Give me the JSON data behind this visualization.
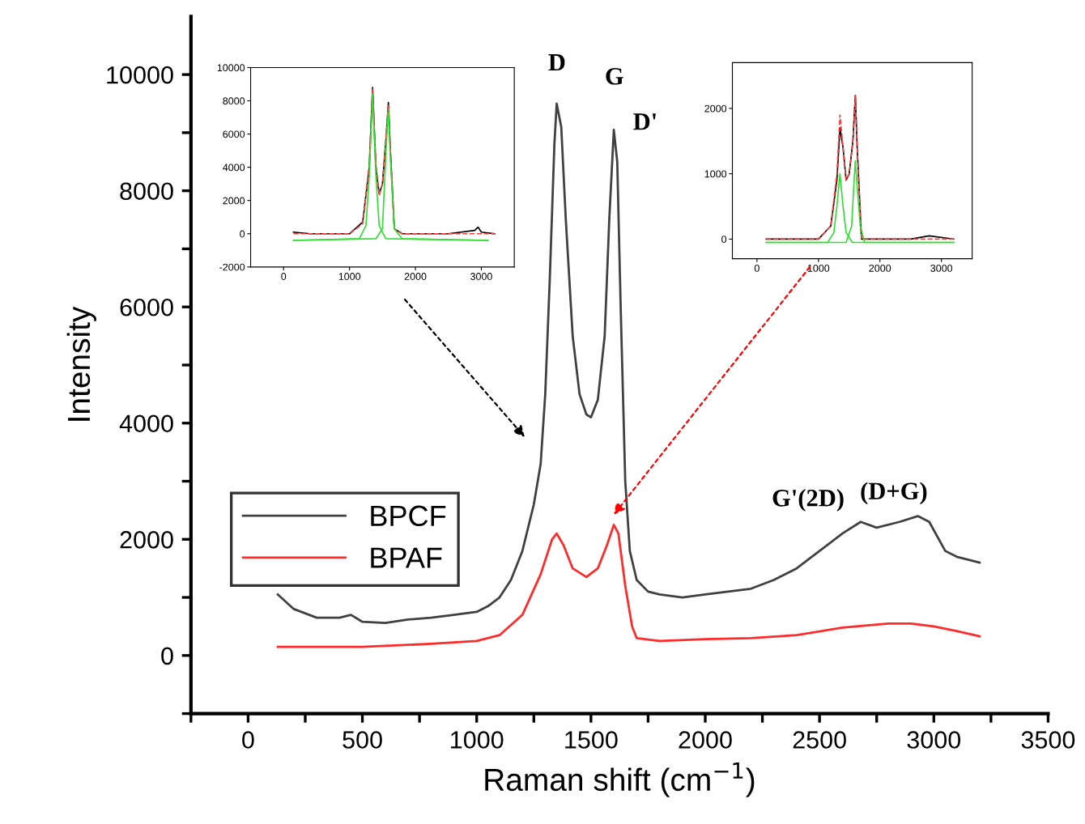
{
  "chart_data": [
    {
      "type": "line",
      "xlabel": "Raman shift (cm$^{−1}$)",
      "ylabel": "Intensity",
      "xlim": [
        -250,
        3500
      ],
      "ylim": [
        -1000,
        11000
      ],
      "xticks": [
        {
          "value": -250,
          "label": null
        },
        0,
        {
          "value": 250,
          "label": null
        },
        500,
        {
          "value": 750,
          "label": null
        },
        1000,
        {
          "value": 1250,
          "label": null
        },
        1500,
        {
          "value": 1750,
          "label": null
        },
        2000,
        {
          "value": 2250,
          "label": null
        },
        2500,
        {
          "value": 2750,
          "label": null
        },
        3000,
        {
          "value": 3250,
          "label": null
        },
        3500
      ],
      "yticks": [
        {
          "value": -1000,
          "label": null
        },
        0,
        {
          "value": 1000,
          "label": null
        },
        2000,
        {
          "value": 3000,
          "label": null
        },
        4000,
        {
          "value": 5000,
          "label": null
        },
        6000,
        {
          "value": 7000,
          "label": null
        },
        8000,
        {
          "value": 9000,
          "label": null
        },
        10000
      ],
      "grid": false,
      "legend": "left",
      "marker": "none",
      "annotations": [
        "D",
        "G",
        "D'",
        "G'(2D)",
        "(D+G)"
      ],
      "series": [
        {
          "name": "BPCF",
          "color": "#404040",
          "line_style": "solid",
          "x": [
            130,
            200,
            300,
            400,
            450,
            500,
            600,
            700,
            800,
            900,
            1000,
            1050,
            1100,
            1150,
            1200,
            1250,
            1280,
            1300,
            1320,
            1340,
            1350,
            1370,
            1390,
            1420,
            1450,
            1480,
            1500,
            1530,
            1560,
            1580,
            1600,
            1615,
            1630,
            1650,
            1670,
            1700,
            1750,
            1800,
            1900,
            2000,
            2100,
            2200,
            2300,
            2400,
            2500,
            2600,
            2680,
            2750,
            2850,
            2930,
            2980,
            3050,
            3100,
            3200
          ],
          "values": [
            1050,
            800,
            650,
            650,
            700,
            580,
            560,
            620,
            650,
            700,
            750,
            850,
            1000,
            1300,
            1800,
            2600,
            3300,
            4500,
            6500,
            8800,
            9500,
            9100,
            7500,
            5500,
            4500,
            4150,
            4100,
            4400,
            5500,
            7500,
            9050,
            8500,
            6000,
            3000,
            1800,
            1300,
            1100,
            1050,
            1000,
            1050,
            1100,
            1150,
            1300,
            1500,
            1800,
            2100,
            2300,
            2200,
            2300,
            2400,
            2300,
            1800,
            1700,
            1600
          ]
        },
        {
          "name": "BPAF",
          "color": "#ff2a2a",
          "line_style": "solid",
          "x": [
            130,
            500,
            800,
            1000,
            1100,
            1200,
            1280,
            1330,
            1350,
            1380,
            1420,
            1480,
            1530,
            1570,
            1600,
            1620,
            1650,
            1680,
            1700,
            1800,
            2000,
            2200,
            2400,
            2600,
            2800,
            2900,
            3000,
            3100,
            3200
          ],
          "values": [
            150,
            150,
            200,
            250,
            350,
            700,
            1400,
            2000,
            2100,
            1900,
            1500,
            1350,
            1500,
            1900,
            2250,
            2100,
            1200,
            500,
            300,
            250,
            280,
            300,
            350,
            480,
            550,
            550,
            500,
            420,
            330
          ]
        }
      ]
    },
    {
      "type": "line",
      "xlim": [
        -500,
        3500
      ],
      "ylim": [
        -2000,
        10000
      ],
      "xticks": [
        0,
        1000,
        2000,
        3000
      ],
      "yticks": [
        -2000,
        0,
        2000,
        4000,
        6000,
        8000,
        10000
      ],
      "grid": false,
      "legend": false,
      "series": [
        {
          "color": "#000000",
          "line_style": "solid",
          "x": [
            150,
            400,
            1000,
            1200,
            1300,
            1350,
            1400,
            1450,
            1500,
            1560,
            1590,
            1620,
            1680,
            1800,
            2500,
            2900,
            2950,
            3000,
            3200
          ],
          "values": [
            100,
            0,
            0,
            700,
            4000,
            8800,
            4000,
            2400,
            3000,
            6000,
            7900,
            5000,
            300,
            0,
            0,
            200,
            400,
            100,
            0
          ]
        },
        {
          "color": "#ff4040",
          "line_style": "dashed",
          "x": [
            150,
            1000,
            1200,
            1300,
            1350,
            1400,
            1450,
            1500,
            1560,
            1590,
            1620,
            1680,
            1800,
            3200
          ],
          "values": [
            0,
            0,
            600,
            4200,
            8700,
            4200,
            2300,
            3000,
            6200,
            7800,
            5000,
            300,
            0,
            0
          ]
        },
        {
          "color": "#33dd33",
          "line_style": "solid",
          "x": [
            150,
            1150,
            1250,
            1300,
            1350,
            1400,
            1450,
            1550,
            3100
          ],
          "values": [
            -400,
            -300,
            500,
            3500,
            8400,
            3500,
            500,
            -300,
            -400
          ]
        },
        {
          "color": "#33dd33",
          "line_style": "solid",
          "x": [
            150,
            1400,
            1500,
            1560,
            1590,
            1620,
            1680,
            1800,
            3100
          ],
          "values": [
            -400,
            -300,
            300,
            5500,
            7500,
            4500,
            300,
            -300,
            -400
          ]
        }
      ]
    },
    {
      "type": "line",
      "xlim": [
        -400,
        3500
      ],
      "ylim": [
        -300,
        2700
      ],
      "xticks": [
        0,
        1000,
        2000,
        3000
      ],
      "yticks": [
        0,
        1000,
        2000
      ],
      "grid": false,
      "legend": false,
      "series": [
        {
          "color": "#000000",
          "line_style": "solid",
          "x": [
            150,
            1000,
            1200,
            1300,
            1350,
            1400,
            1450,
            1500,
            1560,
            1600,
            1630,
            1700,
            2500,
            2800,
            3200
          ],
          "values": [
            0,
            0,
            200,
            900,
            1700,
            1400,
            900,
            1000,
            1500,
            2200,
            1400,
            0,
            0,
            50,
            0
          ]
        },
        {
          "color": "#ff4040",
          "line_style": "dashed",
          "x": [
            150,
            1000,
            1200,
            1300,
            1350,
            1400,
            1450,
            1500,
            1560,
            1600,
            1630,
            1700,
            3200
          ],
          "values": [
            0,
            0,
            200,
            1000,
            1900,
            1400,
            900,
            1000,
            1500,
            2200,
            1400,
            0,
            0
          ]
        },
        {
          "color": "#33dd33",
          "line_style": "solid",
          "x": [
            150,
            1150,
            1250,
            1300,
            1350,
            1400,
            1450,
            1550,
            3200
          ],
          "values": [
            -50,
            -50,
            100,
            500,
            1000,
            500,
            100,
            -50,
            -50
          ]
        },
        {
          "color": "#33dd33",
          "line_style": "solid",
          "x": [
            150,
            1450,
            1540,
            1580,
            1600,
            1630,
            1680,
            1750,
            3200
          ],
          "values": [
            -50,
            -50,
            200,
            900,
            1200,
            800,
            200,
            -50,
            -50
          ]
        }
      ]
    }
  ]
}
